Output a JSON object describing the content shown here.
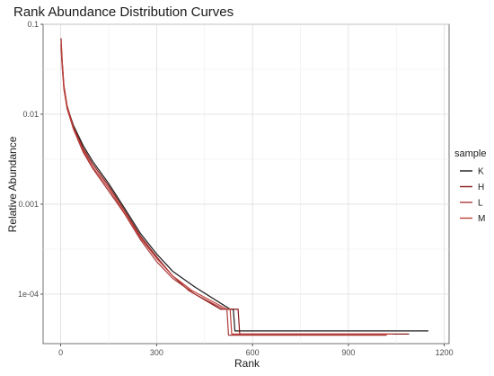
{
  "chart_data": {
    "type": "line",
    "title": "Rank Abundance Distribution Curves",
    "xlabel": "Rank",
    "ylabel": "Relative Abundance",
    "xlim": [
      -55,
      1215
    ],
    "ylim_log10": [
      -4.55,
      -1.0
    ],
    "y_scale": "log10",
    "x_ticks": [
      0,
      300,
      600,
      900,
      1200
    ],
    "x_tick_labels": [
      "0",
      "300",
      "600",
      "900",
      "1200"
    ],
    "y_ticks": [
      0.1,
      0.01,
      0.001,
      0.0001
    ],
    "y_tick_labels": [
      "0.1",
      "0.01",
      "0.001",
      "1e-04"
    ],
    "grid": true,
    "legend": {
      "title": "sample",
      "position": "right"
    },
    "series": [
      {
        "name": "K",
        "color": "#1a1a1a",
        "points": [
          [
            1,
            0.06
          ],
          [
            5,
            0.035
          ],
          [
            10,
            0.02
          ],
          [
            20,
            0.012
          ],
          [
            40,
            0.0075
          ],
          [
            70,
            0.0045
          ],
          [
            100,
            0.003
          ],
          [
            150,
            0.0017
          ],
          [
            200,
            0.0009
          ],
          [
            250,
            0.00047
          ],
          [
            300,
            0.00028
          ],
          [
            350,
            0.00018
          ],
          [
            420,
            0.00012
          ],
          [
            530,
            6.8e-05
          ],
          [
            540,
            6.8e-05
          ],
          [
            545,
            3.9e-05
          ],
          [
            1150,
            3.9e-05
          ]
        ]
      },
      {
        "name": "H",
        "color": "#8b1a1a",
        "points": [
          [
            1,
            0.07
          ],
          [
            5,
            0.038
          ],
          [
            10,
            0.021
          ],
          [
            20,
            0.0125
          ],
          [
            40,
            0.0072
          ],
          [
            70,
            0.0042
          ],
          [
            100,
            0.0028
          ],
          [
            150,
            0.0016
          ],
          [
            200,
            0.00085
          ],
          [
            250,
            0.00044
          ],
          [
            300,
            0.00026
          ],
          [
            350,
            0.00016
          ],
          [
            400,
            0.00011
          ],
          [
            500,
            6.8e-05
          ],
          [
            555,
            6.8e-05
          ],
          [
            560,
            3.6e-05
          ],
          [
            1090,
            3.6e-05
          ]
        ]
      },
      {
        "name": "L",
        "color": "#a83a3a",
        "points": [
          [
            1,
            0.055
          ],
          [
            5,
            0.032
          ],
          [
            10,
            0.019
          ],
          [
            20,
            0.0115
          ],
          [
            40,
            0.0068
          ],
          [
            70,
            0.0038
          ],
          [
            100,
            0.0025
          ],
          [
            150,
            0.0014
          ],
          [
            200,
            0.00078
          ],
          [
            250,
            0.0004
          ],
          [
            300,
            0.00023
          ],
          [
            350,
            0.00015
          ],
          [
            420,
            0.0001
          ],
          [
            510,
            6.8e-05
          ],
          [
            520,
            6.8e-05
          ],
          [
            525,
            3.5e-05
          ],
          [
            1020,
            3.5e-05
          ]
        ]
      },
      {
        "name": "M",
        "color": "#c0403a",
        "points": [
          [
            1,
            0.065
          ],
          [
            5,
            0.036
          ],
          [
            10,
            0.02
          ],
          [
            20,
            0.012
          ],
          [
            40,
            0.007
          ],
          [
            70,
            0.004
          ],
          [
            100,
            0.0026
          ],
          [
            150,
            0.0015
          ],
          [
            200,
            0.0008
          ],
          [
            250,
            0.00042
          ],
          [
            300,
            0.00025
          ],
          [
            350,
            0.00016
          ],
          [
            410,
            0.00011
          ],
          [
            520,
            6.8e-05
          ],
          [
            530,
            6.8e-05
          ],
          [
            535,
            3.6e-05
          ],
          [
            1040,
            3.6e-05
          ]
        ]
      }
    ]
  }
}
